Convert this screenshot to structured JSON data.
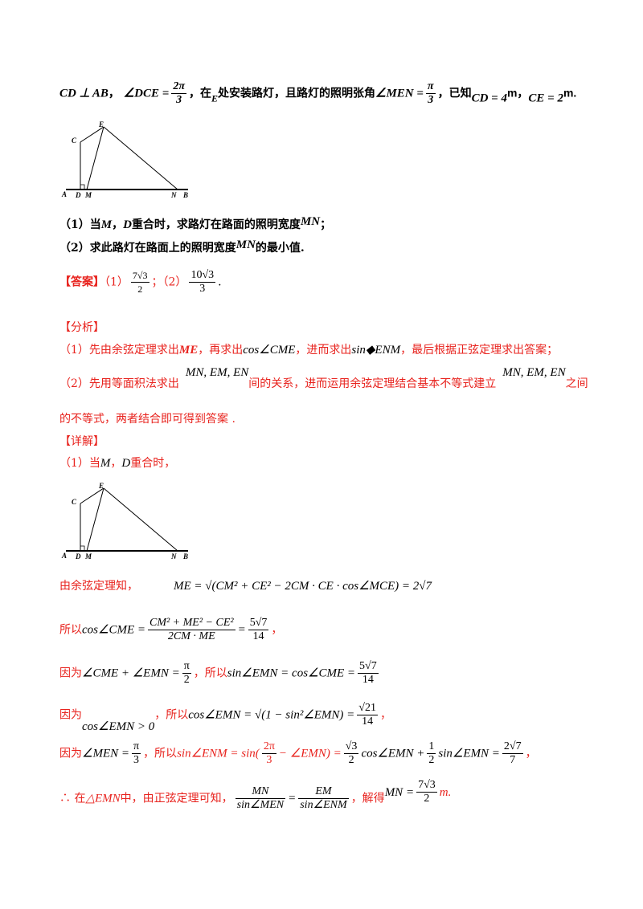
{
  "problem": {
    "line1": {
      "cd_perp_ab": "CD ⊥ AB",
      "comma1": "，",
      "angle_dce": "∠DCE =",
      "angle_dce_num": "2π",
      "angle_dce_den": "3",
      "text_at": "，在",
      "point_e": "E",
      "text_lamp": "处安装路灯，且路灯的照明张角",
      "angle_men": "∠MEN =",
      "angle_men_num": "π",
      "angle_men_den": "3",
      "text_known": "，已知",
      "cd_value": "CD = 4",
      "unit_m1": "m",
      "comma2": "，",
      "ce_value": "CE = 2",
      "unit_m2": "m."
    },
    "figure_labels": {
      "a": "A",
      "b": "B",
      "c": "C",
      "d": "D",
      "e": "E",
      "m": "M",
      "n": "N"
    },
    "q1": {
      "prefix": "（1）当",
      "m": "M",
      "sep": "，",
      "d": "D",
      "text": "重合时，求路灯在路面的照明宽度",
      "mn": "MN",
      "end": "；"
    },
    "q2": {
      "prefix": "（2）求此路灯在路面上的照明宽度",
      "mn": "MN",
      "text": "的最小值."
    }
  },
  "answer": {
    "label": "【答案】",
    "part1": "（1）",
    "a1_num": "7√3",
    "a1_den": "2",
    "sep": "；",
    "part2": "（2）",
    "a2_num": "10√3",
    "a2_den": "3",
    "end": "."
  },
  "analysis": {
    "label": "【分析】",
    "l1_a": "（1）先由余弦定理求出",
    "l1_me": "ME",
    "l1_b": "，再求出",
    "l1_cos": "cos∠CME",
    "l1_c": "，进而求出",
    "l1_sin": "sin◆ENM",
    "l1_d": "，最后根据正弦定理求出答案；",
    "l2_a": "（2）先用等面积法求出",
    "l2_vars": "MN, EM, EN",
    "l2_b": "间的关系，进而运用余弦定理结合基本不等式建立",
    "l2_vars2": "MN, EM, EN",
    "l2_c": "之间",
    "l3": "的不等式，两者结合即可得到答案 ."
  },
  "detail": {
    "label": "【详解】",
    "d1_a": "（1）当",
    "d1_m": "M",
    "d1_sep": "，",
    "d1_d": "D",
    "d1_b": "重合时，",
    "s1_text": "由余弦定理知，",
    "s1_formula": "ME = √(CM² + CE² − 2CM · CE · cos∠MCE) = 2√7",
    "s2_text": "所以",
    "s2_lhs": "cos∠CME =",
    "s2_num": "CM² + ME² − CE²",
    "s2_den": "2CM · ME",
    "s2_eq": "=",
    "s2_rnum": "5√7",
    "s2_rden": "14",
    "s2_end": "，",
    "s3_text": "因为",
    "s3_lhs": "∠CME + ∠EMN =",
    "s3_num": "π",
    "s3_den": "2",
    "s3_mid": "，所以",
    "s3_rhs": "sin∠EMN = cos∠CME =",
    "s3_rnum": "5√7",
    "s3_rden": "14",
    "s4_text": "因为",
    "s4_cond": "cos∠EMN > 0",
    "s4_mid": "，所以",
    "s4_rhs": "cos∠EMN = √(1 − sin²∠EMN) =",
    "s4_rnum": "√21",
    "s4_rden": "14",
    "s4_end": "，",
    "s5_text": "因为",
    "s5_lhs": "∠MEN =",
    "s5_num": "π",
    "s5_den": "3",
    "s5_mid": "，所以",
    "s5_sin": "sin∠ENM = sin(",
    "s5_inum": "2π",
    "s5_iden": "3",
    "s5_inner": "− ∠EMN) =",
    "s5_c1num": "√3",
    "s5_c1den": "2",
    "s5_t1": "cos∠EMN +",
    "s5_c2num": "1",
    "s5_c2den": "2",
    "s5_t2": "sin∠EMN =",
    "s5_rnum": "2√7",
    "s5_rden": "7",
    "s5_end": "，",
    "s6_text": "∴ 在",
    "s6_tri": "△EMN",
    "s6_mid": "中，由正弦定理可知，",
    "s6_f1num": "MN",
    "s6_f1den": "sin∠MEN",
    "s6_eq": "=",
    "s6_f2num": "EM",
    "s6_f2den": "sin∠ENM",
    "s6_solve": "，解得",
    "s6_res": "MN =",
    "s6_rnum": "7√3",
    "s6_rden": "2",
    "s6_unit": "m."
  }
}
